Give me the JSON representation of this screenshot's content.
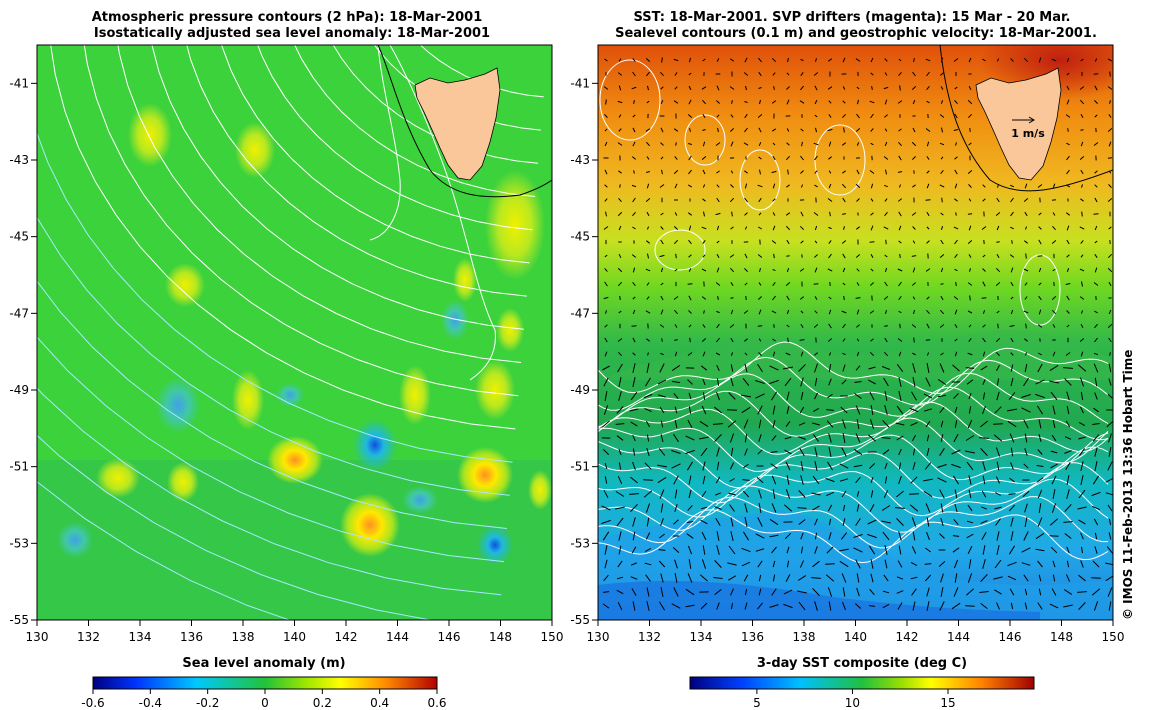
{
  "left_panel": {
    "title_line1": "Atmospheric pressure contours (2 hPa): 18-Mar-2001",
    "title_line2": "Isostatically adjusted sea level anomaly: 18-Mar-2001",
    "x_ticks": [
      "130",
      "132",
      "134",
      "136",
      "138",
      "140",
      "142",
      "144",
      "146",
      "148",
      "150"
    ],
    "y_ticks": [
      "-41",
      "-43",
      "-45",
      "-47",
      "-49",
      "-51",
      "-53",
      "-55"
    ],
    "colorbar": {
      "title": "Sea level anomaly (m)",
      "ticks": [
        "-0.6",
        "-0.4",
        "-0.2",
        "0",
        "0.2",
        "0.4",
        "0.6"
      ],
      "range": [
        -0.6,
        0.6
      ]
    },
    "field_color": "#3cd23c"
  },
  "right_panel": {
    "title_line1": "SST: 18-Mar-2001. SVP drifters (magenta): 15 Mar - 20 Mar.",
    "title_line2": "Sealevel contours (0.1 m) and geostrophic velocity: 18-Mar-2001.",
    "x_ticks": [
      "130",
      "132",
      "134",
      "136",
      "138",
      "140",
      "142",
      "144",
      "146",
      "148",
      "150"
    ],
    "y_ticks": [
      "-41",
      "-43",
      "-45",
      "-47",
      "-49",
      "-51",
      "-53",
      "-55"
    ],
    "velocity_label": "1 m/s",
    "colorbar": {
      "title": "3-day SST composite (deg C)",
      "ticks": [
        "5",
        "10",
        "15"
      ],
      "range": [
        1.5,
        19.5
      ]
    }
  },
  "map_extent": {
    "lon": [
      130,
      150
    ],
    "lat": [
      -55,
      -40
    ]
  },
  "credit": "© IMOS 11-Feb-2013 13:36 Hobart Time",
  "colors": {
    "land": "#fac79b",
    "contour": "#ffffff",
    "arrow": "#000000"
  }
}
